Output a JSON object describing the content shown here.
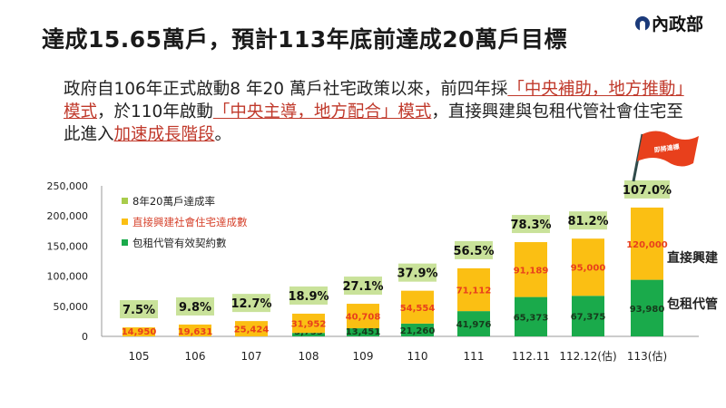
{
  "title": "達成15.65萬戶，預計113年底前達成20萬戶目標",
  "logo": {
    "text": "內政部",
    "color": "#1b3a7a"
  },
  "paragraph": [
    {
      "text": "政府自106年正式啟動8 年20 萬戶社宅政策以來，前四年採",
      "highlight": false
    },
    {
      "text": "「中央補助，地方推動」模式",
      "highlight": true
    },
    {
      "text": "，於110年啟動",
      "highlight": false
    },
    {
      "text": "「中央主導，地方配合」模式",
      "highlight": true
    },
    {
      "text": "，直接興建與包租代管社會住宅至此進入",
      "highlight": false
    },
    {
      "text": "加速成長階段",
      "highlight": true
    },
    {
      "text": "。",
      "highlight": false
    }
  ],
  "flag": {
    "text": "即將達標",
    "color": "#e8401c"
  },
  "side_labels": {
    "direct": "直接興建",
    "rental": "包租代管"
  },
  "chart_data": {
    "type": "bar",
    "stacked": true,
    "categories": [
      "105",
      "106",
      "107",
      "108",
      "109",
      "110",
      "111",
      "112.11",
      "112.12(估)",
      "113(估)"
    ],
    "ylim": [
      0,
      250000
    ],
    "yticks": [
      "0",
      "50,000",
      "100,000",
      "150,000",
      "200,000",
      "250,000"
    ],
    "ytick_values": [
      0,
      50000,
      100000,
      150000,
      200000,
      250000
    ],
    "grid": false,
    "legend_position": "top-left",
    "legend": [
      {
        "label": "8年20萬戶達成率",
        "color": "#a9cc4c",
        "text_color": "#222"
      },
      {
        "label": "直接興建社會住宅達成數",
        "color": "#fbbf13",
        "text_color": "#d6402a"
      },
      {
        "label": "包租代管有效契約數",
        "color": "#1aaa4b",
        "text_color": "#222"
      }
    ],
    "series": [
      {
        "name": "包租代管有效契約數",
        "color": "#1aaa4b",
        "label_color": "#163a1c",
        "values": [
          0,
          0,
          0,
          5753,
          13451,
          21260,
          41976,
          65373,
          67375,
          93980
        ],
        "labels": [
          "",
          "",
          "",
          "5,753",
          "13,451",
          "21,260",
          "41,976",
          "65,373",
          "67,375",
          "93,980"
        ]
      },
      {
        "name": "直接興建社會住宅達成數",
        "color": "#fbbf13",
        "label_color": "#e8401c",
        "values": [
          14950,
          19631,
          25424,
          31952,
          40708,
          54554,
          71112,
          91189,
          95000,
          120000
        ],
        "labels": [
          "14,950",
          "19,631",
          "25,424",
          "31,952",
          "40,708",
          "54,554",
          "71,112",
          "91,189",
          "95,000",
          "120,000"
        ]
      }
    ],
    "rates": [
      "7.5%",
      "9.8%",
      "12.7%",
      "18.9%",
      "27.1%",
      "37.9%",
      "56.5%",
      "78.3%",
      "81.2%",
      "107.0%"
    ],
    "rate_box_color": "#c9e29a"
  }
}
